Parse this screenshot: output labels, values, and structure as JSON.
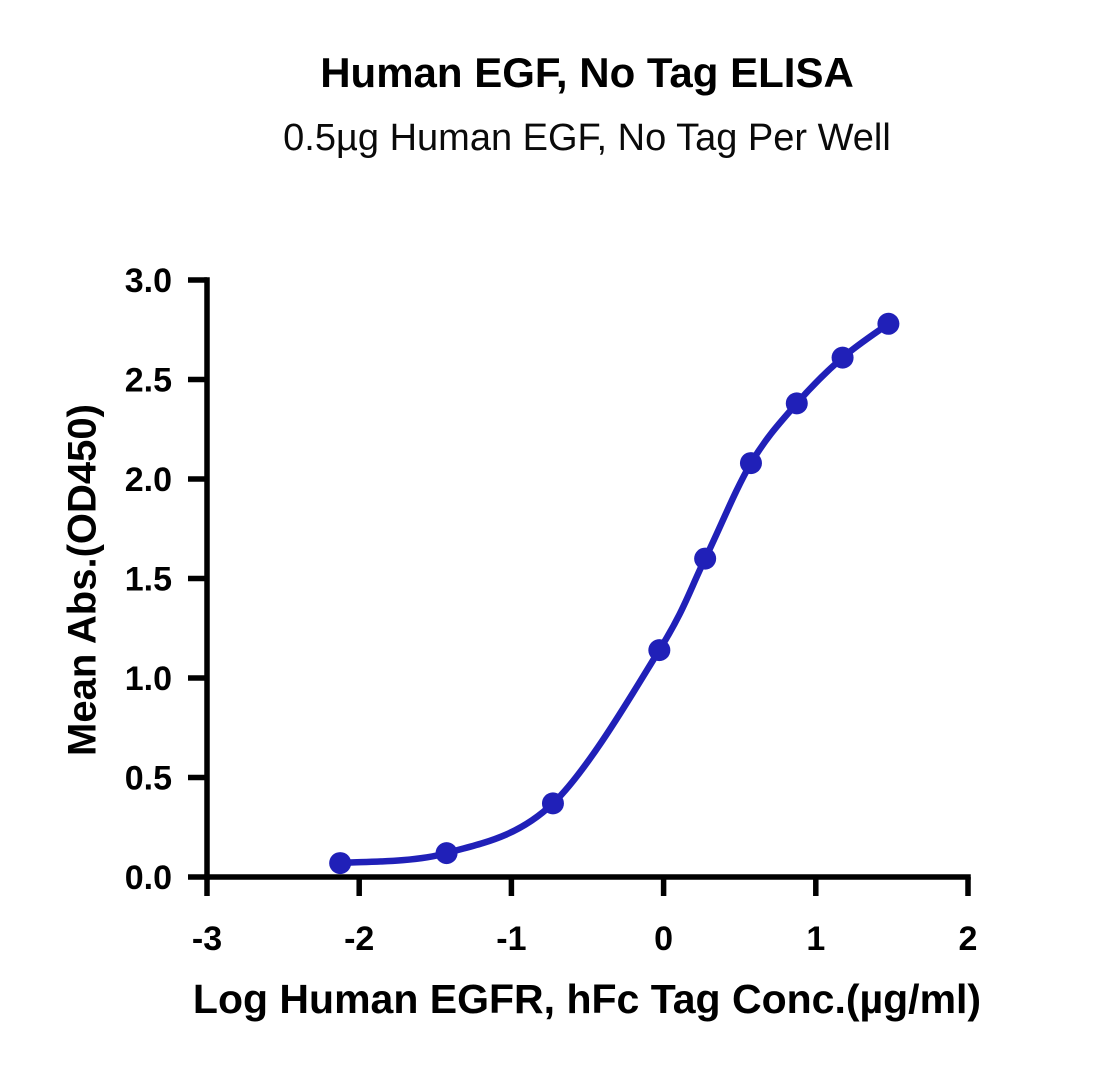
{
  "chart_data": {
    "type": "line",
    "title": "Human EGF, No Tag ELISA",
    "subtitle": "0.5µg Human EGF, No Tag Per Well",
    "xlabel": "Log Human EGFR, hFc Tag Conc.(µg/ml)",
    "ylabel": "Mean Abs.(OD450)",
    "series": [
      {
        "x": [
          -2.125,
          -1.426,
          -0.727,
          -0.028,
          0.273,
          0.574,
          0.875,
          1.176,
          1.477
        ],
        "y": [
          0.07,
          0.12,
          0.37,
          1.14,
          1.6,
          2.08,
          2.38,
          2.61,
          2.78
        ],
        "color": "#2020b8",
        "marker": "circle",
        "line_style": "smooth-sigmoid"
      }
    ],
    "xlim": [
      -3,
      2
    ],
    "ylim": [
      0,
      3
    ],
    "xticks": [
      -3,
      -2,
      -1,
      0,
      1,
      2
    ],
    "xtick_labels": [
      "-3",
      "-2",
      "-1",
      "0",
      "1",
      "2"
    ],
    "yticks": [
      0,
      0.5,
      1,
      1.5,
      2,
      2.5,
      3
    ],
    "ytick_labels": [
      "0.0",
      "0.5",
      "1.0",
      "1.5",
      "2.0",
      "2.5",
      "3.0"
    ],
    "grid": false,
    "legend": "none",
    "axis_color": "#000000",
    "text_color": "#000000",
    "background_color": "#ffffff"
  }
}
